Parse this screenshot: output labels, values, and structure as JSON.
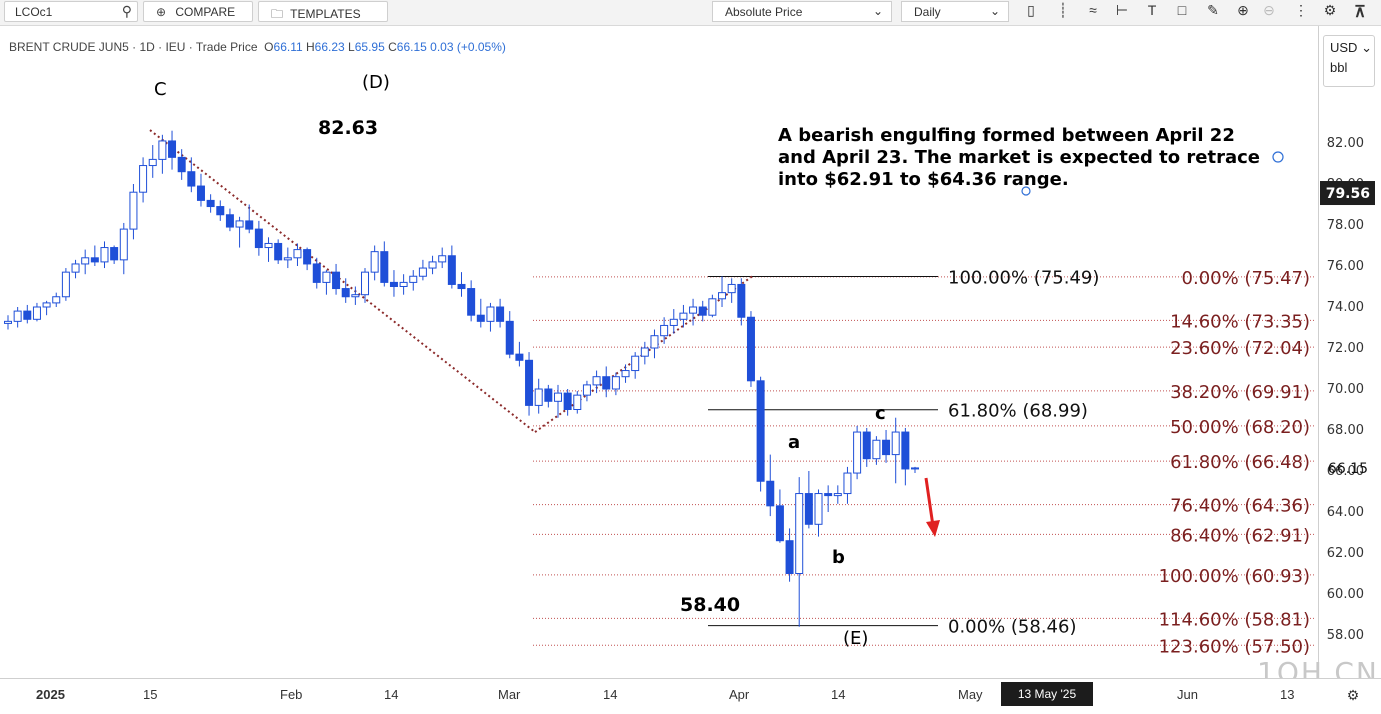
{
  "toolbar": {
    "symbol": "LCOc1",
    "compare_label": "COMPARE",
    "templates_label": "TEMPLATES",
    "price_type": "Absolute Price",
    "interval": "Daily"
  },
  "legend": {
    "name": "BRENT CRUDE JUN5 · 1D · IEU · Trade Price",
    "open_label": "O",
    "open": "66.11",
    "high_label": "H",
    "high": "66.23",
    "low_label": "L",
    "low": "65.95",
    "close_label": "C",
    "close": "66.15",
    "change": "0.03 (+0.05%)"
  },
  "units": {
    "currency": "USD",
    "unit": "bbl"
  },
  "y_axis": {
    "ticks": [
      "82.00",
      "80.00",
      "78.00",
      "76.00",
      "74.00",
      "72.00",
      "70.00",
      "68.00",
      "66.00",
      "64.00",
      "62.00",
      "60.00",
      "58.00"
    ],
    "last_price_badge": "79.56",
    "current_price": "66.15"
  },
  "x_axis": {
    "labels": [
      "2025",
      "15",
      "Feb",
      "14",
      "Mar",
      "14",
      "Apr",
      "14",
      "May",
      "Jun",
      "13"
    ],
    "crosshair_date": "13 May '25"
  },
  "annotations": {
    "C": "C",
    "D": "(D)",
    "high_value": "82.63",
    "wave_a": "a",
    "wave_b": "b",
    "wave_c": "c",
    "low_value": "58.40",
    "E": "(E)",
    "note_line1": "A bearish engulfing formed between April 22",
    "note_line2": "and April 23. The market is expected to retrace",
    "note_line3": "into $62.91 to $64.36 range."
  },
  "fib_retracement": [
    {
      "label": "100.00% (75.49)",
      "price": 75.49
    },
    {
      "label": "61.80% (68.99)",
      "price": 68.99
    },
    {
      "label": "0.00% (58.46)",
      "price": 58.46
    }
  ],
  "fib_extension": [
    {
      "label": "0.00% (75.47)",
      "price": 75.47
    },
    {
      "label": "14.60% (73.35)",
      "price": 73.35
    },
    {
      "label": "23.60% (72.04)",
      "price": 72.04
    },
    {
      "label": "38.20% (69.91)",
      "price": 69.91
    },
    {
      "label": "50.00% (68.20)",
      "price": 68.2
    },
    {
      "label": "61.80% (66.48)",
      "price": 66.48
    },
    {
      "label": "76.40% (64.36)",
      "price": 64.36
    },
    {
      "label": "86.40% (62.91)",
      "price": 62.91
    },
    {
      "label": "100.00% (60.93)",
      "price": 60.93
    },
    {
      "label": "114.60% (58.81)",
      "price": 58.81
    },
    {
      "label": "123.60% (57.50)",
      "price": 57.5
    }
  ],
  "colors": {
    "candle": "#1f4fd8",
    "fib_text": "#7a1f1f",
    "trend": "#8b2a2a",
    "arrow": "#e02020"
  },
  "watermark": "1OH.CN",
  "chart_data": {
    "type": "candlestick",
    "ylim": [
      57,
      84
    ],
    "candles": [
      [
        73.2,
        73.6,
        72.9,
        73.3
      ],
      [
        73.3,
        74.0,
        73.0,
        73.8
      ],
      [
        73.8,
        74.1,
        73.2,
        73.4
      ],
      [
        73.4,
        74.2,
        73.3,
        74.0
      ],
      [
        74.0,
        74.3,
        73.6,
        74.2
      ],
      [
        74.2,
        74.7,
        74.0,
        74.5
      ],
      [
        74.5,
        75.9,
        74.3,
        75.7
      ],
      [
        75.7,
        76.3,
        75.4,
        76.1
      ],
      [
        76.1,
        76.8,
        75.6,
        76.4
      ],
      [
        76.4,
        77.0,
        76.0,
        76.2
      ],
      [
        76.2,
        77.2,
        75.9,
        76.9
      ],
      [
        76.9,
        77.0,
        76.1,
        76.3
      ],
      [
        76.3,
        78.1,
        75.6,
        77.8
      ],
      [
        77.8,
        80.0,
        77.3,
        79.6
      ],
      [
        79.6,
        81.3,
        79.1,
        80.9
      ],
      [
        80.9,
        81.9,
        80.3,
        81.2
      ],
      [
        81.2,
        82.4,
        80.5,
        82.1
      ],
      [
        82.1,
        82.6,
        80.7,
        81.3
      ],
      [
        81.3,
        81.7,
        80.2,
        80.6
      ],
      [
        80.6,
        81.3,
        79.6,
        79.9
      ],
      [
        79.9,
        80.5,
        78.9,
        79.2
      ],
      [
        79.2,
        79.5,
        78.6,
        78.9
      ],
      [
        78.9,
        79.2,
        78.2,
        78.5
      ],
      [
        78.5,
        78.8,
        77.7,
        77.9
      ],
      [
        77.9,
        78.4,
        76.9,
        78.2
      ],
      [
        78.2,
        79.0,
        77.6,
        77.8
      ],
      [
        77.8,
        78.2,
        76.5,
        76.9
      ],
      [
        76.9,
        77.4,
        76.2,
        77.1
      ],
      [
        77.1,
        77.3,
        76.1,
        76.3
      ],
      [
        76.3,
        76.9,
        75.9,
        76.4
      ],
      [
        76.4,
        77.1,
        76.0,
        76.8
      ],
      [
        76.8,
        76.9,
        75.8,
        76.1
      ],
      [
        76.1,
        76.4,
        74.9,
        75.2
      ],
      [
        75.2,
        75.8,
        74.6,
        75.7
      ],
      [
        75.7,
        76.1,
        74.6,
        74.9
      ],
      [
        74.9,
        75.4,
        74.2,
        74.5
      ],
      [
        74.5,
        75.0,
        74.1,
        74.6
      ],
      [
        74.6,
        75.9,
        74.2,
        75.7
      ],
      [
        75.7,
        77.0,
        75.3,
        76.7
      ],
      [
        76.7,
        77.2,
        75.0,
        75.2
      ],
      [
        75.2,
        75.8,
        74.5,
        75.0
      ],
      [
        75.0,
        75.6,
        74.6,
        75.2
      ],
      [
        75.2,
        75.8,
        74.8,
        75.5
      ],
      [
        75.5,
        76.3,
        75.3,
        75.9
      ],
      [
        75.9,
        76.5,
        75.6,
        76.2
      ],
      [
        76.2,
        76.9,
        75.9,
        76.5
      ],
      [
        76.5,
        77.0,
        74.9,
        75.1
      ],
      [
        75.1,
        75.7,
        74.5,
        74.9
      ],
      [
        74.9,
        75.3,
        73.3,
        73.6
      ],
      [
        73.6,
        74.4,
        73.0,
        73.3
      ],
      [
        73.3,
        74.2,
        72.8,
        74.0
      ],
      [
        74.0,
        74.4,
        73.0,
        73.3
      ],
      [
        73.3,
        73.8,
        71.5,
        71.7
      ],
      [
        71.7,
        72.3,
        71.1,
        71.4
      ],
      [
        71.4,
        71.8,
        68.7,
        69.2
      ],
      [
        69.2,
        70.5,
        68.8,
        70.0
      ],
      [
        70.0,
        70.2,
        69.1,
        69.4
      ],
      [
        69.4,
        70.2,
        68.6,
        69.8
      ],
      [
        69.8,
        70.0,
        68.7,
        69.0
      ],
      [
        69.0,
        69.9,
        68.8,
        69.7
      ],
      [
        69.7,
        70.4,
        69.4,
        70.2
      ],
      [
        70.2,
        70.9,
        69.8,
        70.6
      ],
      [
        70.6,
        71.1,
        69.6,
        70.0
      ],
      [
        70.0,
        70.8,
        69.7,
        70.6
      ],
      [
        70.6,
        71.2,
        70.3,
        70.9
      ],
      [
        70.9,
        71.8,
        70.5,
        71.6
      ],
      [
        71.6,
        72.3,
        71.2,
        72.0
      ],
      [
        72.0,
        72.9,
        71.5,
        72.6
      ],
      [
        72.6,
        73.5,
        72.2,
        73.1
      ],
      [
        73.1,
        73.9,
        72.7,
        73.4
      ],
      [
        73.4,
        74.1,
        73.0,
        73.7
      ],
      [
        73.7,
        74.4,
        73.1,
        74.0
      ],
      [
        74.0,
        74.3,
        73.3,
        73.6
      ],
      [
        73.6,
        74.6,
        73.5,
        74.4
      ],
      [
        74.4,
        75.5,
        74.0,
        74.7
      ],
      [
        74.7,
        75.4,
        74.2,
        75.1
      ],
      [
        75.1,
        75.4,
        73.1,
        73.5
      ],
      [
        73.5,
        73.8,
        70.1,
        70.4
      ],
      [
        70.4,
        70.6,
        65.0,
        65.5
      ],
      [
        65.5,
        66.8,
        63.8,
        64.3
      ],
      [
        64.3,
        65.1,
        62.5,
        62.6
      ],
      [
        62.6,
        63.2,
        60.6,
        61.0
      ],
      [
        61.0,
        65.7,
        58.4,
        64.9
      ],
      [
        64.9,
        66.0,
        63.2,
        63.4
      ],
      [
        63.4,
        65.1,
        62.8,
        64.9
      ],
      [
        64.9,
        65.3,
        64.0,
        64.8
      ],
      [
        64.8,
        65.3,
        64.4,
        64.9
      ],
      [
        64.9,
        66.2,
        64.4,
        65.9
      ],
      [
        65.9,
        68.2,
        65.6,
        67.9
      ],
      [
        67.9,
        68.1,
        66.2,
        66.6
      ],
      [
        66.6,
        67.7,
        66.3,
        67.5
      ],
      [
        67.5,
        68.0,
        66.4,
        66.8
      ],
      [
        66.8,
        68.6,
        65.4,
        67.9
      ],
      [
        67.9,
        68.1,
        65.3,
        66.1
      ],
      [
        66.1,
        66.2,
        65.9,
        66.15
      ]
    ]
  }
}
